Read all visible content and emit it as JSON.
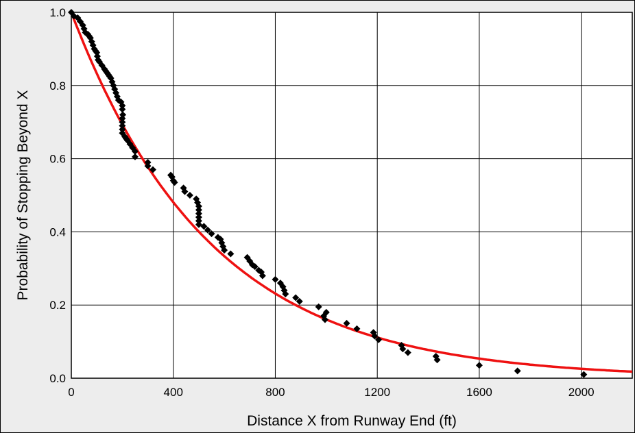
{
  "chart_data": {
    "type": "scatter",
    "title": "",
    "xlabel": "Distance X from Runway End (ft)",
    "ylabel": "Probability of Stopping Beyond X",
    "xlim": [
      0,
      2200
    ],
    "ylim": [
      0,
      1.0
    ],
    "x_ticks": [
      0,
      400,
      800,
      1200,
      1600,
      2000
    ],
    "x_tick_labels": [
      "0",
      "400",
      "800",
      "1200",
      "1600",
      "2000"
    ],
    "y_ticks": [
      0.0,
      0.2,
      0.4,
      0.6,
      0.8,
      1.0
    ],
    "y_tick_labels": [
      "0.0",
      "0.2",
      "0.4",
      "0.6",
      "0.8",
      "1.0"
    ],
    "grid": true,
    "colors": {
      "background": "#ededed",
      "plot_area": "#ffffff",
      "grid": "#000000",
      "points": "#000000",
      "curve": "#ee1111"
    },
    "marker": "diamond",
    "series": [
      {
        "kind": "points",
        "points": [
          [
            0,
            1.0
          ],
          [
            10,
            0.99
          ],
          [
            25,
            0.985
          ],
          [
            35,
            0.975
          ],
          [
            45,
            0.965
          ],
          [
            50,
            0.955
          ],
          [
            55,
            0.945
          ],
          [
            65,
            0.94
          ],
          [
            70,
            0.935
          ],
          [
            75,
            0.93
          ],
          [
            80,
            0.92
          ],
          [
            85,
            0.91
          ],
          [
            90,
            0.9
          ],
          [
            95,
            0.895
          ],
          [
            100,
            0.89
          ],
          [
            102,
            0.88
          ],
          [
            105,
            0.87
          ],
          [
            110,
            0.865
          ],
          [
            120,
            0.855
          ],
          [
            130,
            0.845
          ],
          [
            135,
            0.84
          ],
          [
            140,
            0.835
          ],
          [
            145,
            0.83
          ],
          [
            150,
            0.825
          ],
          [
            155,
            0.82
          ],
          [
            160,
            0.81
          ],
          [
            165,
            0.8
          ],
          [
            170,
            0.79
          ],
          [
            175,
            0.78
          ],
          [
            180,
            0.77
          ],
          [
            185,
            0.76
          ],
          [
            195,
            0.755
          ],
          [
            200,
            0.745
          ],
          [
            200,
            0.735
          ],
          [
            202,
            0.72
          ],
          [
            200,
            0.71
          ],
          [
            200,
            0.7
          ],
          [
            200,
            0.69
          ],
          [
            200,
            0.68
          ],
          [
            200,
            0.67
          ],
          [
            210,
            0.66
          ],
          [
            215,
            0.655
          ],
          [
            220,
            0.65
          ],
          [
            230,
            0.64
          ],
          [
            240,
            0.63
          ],
          [
            250,
            0.62
          ],
          [
            250,
            0.605
          ],
          [
            300,
            0.59
          ],
          [
            300,
            0.58
          ],
          [
            320,
            0.57
          ],
          [
            390,
            0.555
          ],
          [
            395,
            0.55
          ],
          [
            400,
            0.54
          ],
          [
            405,
            0.535
          ],
          [
            440,
            0.52
          ],
          [
            445,
            0.51
          ],
          [
            465,
            0.5
          ],
          [
            490,
            0.49
          ],
          [
            495,
            0.48
          ],
          [
            500,
            0.47
          ],
          [
            500,
            0.46
          ],
          [
            500,
            0.45
          ],
          [
            500,
            0.44
          ],
          [
            500,
            0.43
          ],
          [
            500,
            0.42
          ],
          [
            520,
            0.415
          ],
          [
            535,
            0.405
          ],
          [
            550,
            0.395
          ],
          [
            575,
            0.385
          ],
          [
            585,
            0.38
          ],
          [
            590,
            0.37
          ],
          [
            595,
            0.36
          ],
          [
            600,
            0.35
          ],
          [
            625,
            0.34
          ],
          [
            690,
            0.33
          ],
          [
            700,
            0.32
          ],
          [
            710,
            0.31
          ],
          [
            720,
            0.305
          ],
          [
            735,
            0.295
          ],
          [
            745,
            0.29
          ],
          [
            750,
            0.28
          ],
          [
            800,
            0.27
          ],
          [
            820,
            0.26
          ],
          [
            830,
            0.25
          ],
          [
            835,
            0.24
          ],
          [
            840,
            0.23
          ],
          [
            880,
            0.22
          ],
          [
            895,
            0.21
          ],
          [
            970,
            0.195
          ],
          [
            1000,
            0.18
          ],
          [
            990,
            0.17
          ],
          [
            995,
            0.16
          ],
          [
            1080,
            0.15
          ],
          [
            1120,
            0.135
          ],
          [
            1185,
            0.125
          ],
          [
            1190,
            0.115
          ],
          [
            1205,
            0.105
          ],
          [
            1295,
            0.09
          ],
          [
            1300,
            0.08
          ],
          [
            1320,
            0.07
          ],
          [
            1430,
            0.06
          ],
          [
            1435,
            0.05
          ],
          [
            1600,
            0.035
          ],
          [
            1750,
            0.02
          ],
          [
            2010,
            0.01
          ]
        ]
      },
      {
        "kind": "fitted-curve",
        "function": "exp",
        "a": 1.0,
        "b": 0.00183,
        "x_range": [
          0,
          2200
        ]
      }
    ]
  }
}
